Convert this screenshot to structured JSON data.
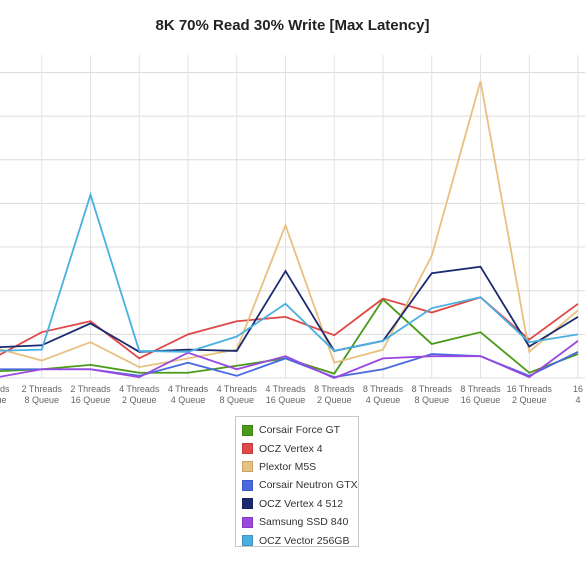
{
  "chart_data": {
    "type": "line",
    "title": "8K 70% Read 30% Write [Max Latency]",
    "xlabel": "",
    "ylabel": "",
    "grid": true,
    "legend_position": "bottom-center",
    "categories": [
      [
        "Threads",
        "Queue"
      ],
      [
        "2 Threads",
        "8 Queue"
      ],
      [
        "2 Threads",
        "16 Queue"
      ],
      [
        "4 Threads",
        "2 Queue"
      ],
      [
        "4 Threads",
        "4 Queue"
      ],
      [
        "4 Threads",
        "8 Queue"
      ],
      [
        "4 Threads",
        "16 Queue"
      ],
      [
        "8 Threads",
        "2 Queue"
      ],
      [
        "8 Threads",
        "4 Queue"
      ],
      [
        "8 Threads",
        "8 Queue"
      ],
      [
        "8 Threads",
        "16 Queue"
      ],
      [
        "16 Threads",
        "2 Queue"
      ],
      [
        "16",
        "4"
      ]
    ],
    "ylim": [
      0,
      7.4
    ],
    "series": [
      {
        "name": "Corsair Force GT",
        "color": "#4a9a1a",
        "values": [
          0.15,
          0.2,
          0.3,
          0.12,
          0.12,
          0.28,
          0.45,
          0.1,
          1.8,
          0.78,
          1.05,
          0.12,
          0.55
        ]
      },
      {
        "name": "OCZ Vertex 4",
        "color": "#e04848",
        "values": [
          0.45,
          1.05,
          1.3,
          0.45,
          1.0,
          1.3,
          1.4,
          0.98,
          1.82,
          1.5,
          1.85,
          0.88,
          1.7
        ]
      },
      {
        "name": "Plextor M5S",
        "color": "#e8c080",
        "values": [
          0.7,
          0.4,
          0.82,
          0.25,
          0.45,
          0.65,
          3.5,
          0.35,
          0.65,
          2.8,
          6.8,
          0.6,
          1.55
        ]
      },
      {
        "name": "Corsair Neutron GTX",
        "color": "#4a6ae0",
        "values": [
          0.2,
          0.2,
          0.2,
          0.05,
          0.35,
          0.05,
          0.45,
          0.02,
          0.2,
          0.55,
          0.5,
          0.05,
          0.6
        ]
      },
      {
        "name": "OCZ Vertex 4 512",
        "color": "#1a2a6e",
        "values": [
          0.7,
          0.75,
          1.25,
          0.6,
          0.65,
          0.62,
          2.45,
          0.62,
          0.85,
          2.4,
          2.55,
          0.72,
          1.4
        ]
      },
      {
        "name": "Samsung SSD 840",
        "color": "#9a48e0",
        "values": [
          0.0,
          0.2,
          0.2,
          0.02,
          0.58,
          0.2,
          0.5,
          0.0,
          0.45,
          0.5,
          0.5,
          0.02,
          0.85
        ]
      },
      {
        "name": "OCZ Vector 256GB",
        "color": "#4ab0e0",
        "values": [
          0.62,
          0.65,
          4.2,
          0.62,
          0.6,
          0.95,
          1.7,
          0.62,
          0.85,
          1.6,
          1.85,
          0.82,
          1.0
        ]
      }
    ]
  }
}
